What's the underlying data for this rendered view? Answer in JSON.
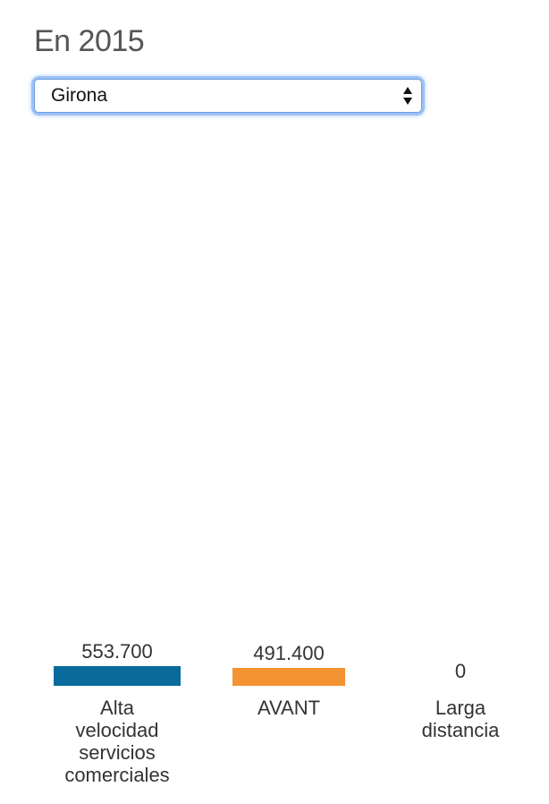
{
  "header": {
    "title": "En 2015"
  },
  "filter": {
    "selected": "Girona",
    "icon": "select-arrows-icon"
  },
  "colors": {
    "alta_velocidad": "#0b6a9c",
    "avant": "#f39331",
    "larga_distancia": "#bbbbbb"
  },
  "chart_data": {
    "type": "bar",
    "title": "",
    "xlabel": "",
    "ylabel": "",
    "categories": [
      "Alta velocidad servicios comerciales",
      "AVANT",
      "Larga distancia"
    ],
    "category_lines": [
      [
        "Alta",
        "velocidad",
        "servicios",
        "comerciales"
      ],
      [
        "AVANT"
      ],
      [
        "Larga",
        "distancia"
      ]
    ],
    "values": [
      553700,
      491400,
      0
    ],
    "value_labels": [
      "553.700",
      "491.400",
      "0"
    ],
    "colors": [
      "#0b6a9c",
      "#f39331",
      "#bbbbbb"
    ],
    "grid": false,
    "legend": "none"
  }
}
